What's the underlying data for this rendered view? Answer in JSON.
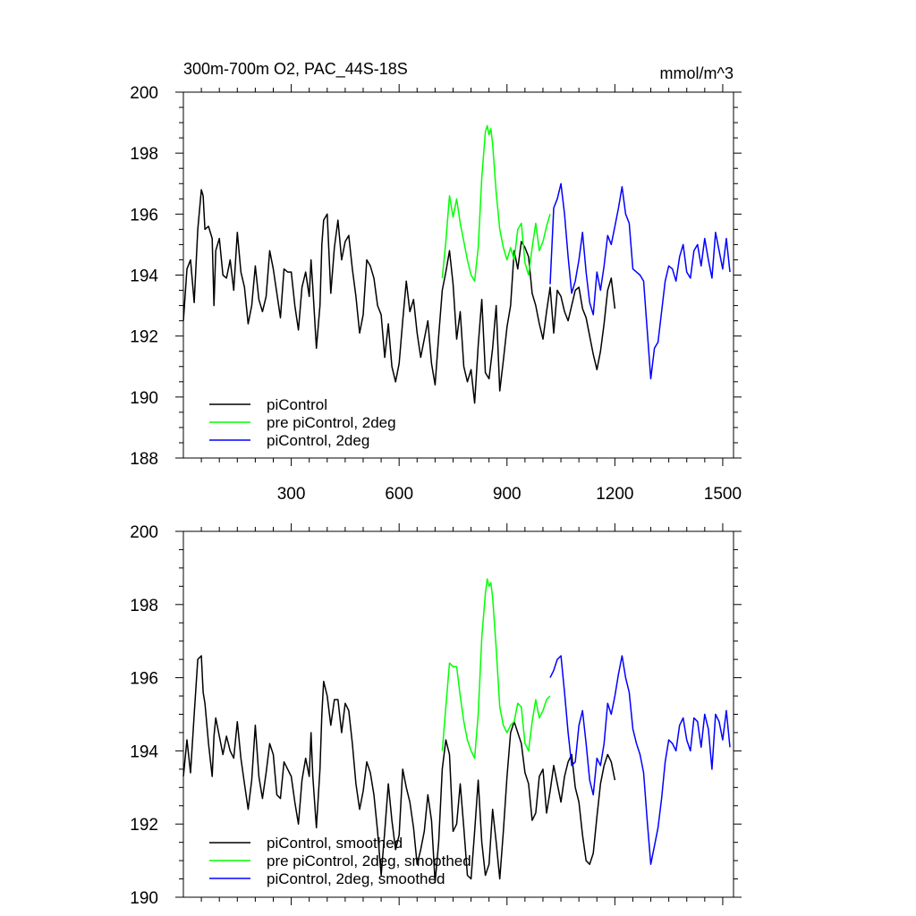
{
  "chart_data": [
    {
      "type": "line",
      "title": "300m-700m O2, PAC_44S-18S",
      "units_label": "mmol/m^3",
      "xlim": [
        0,
        1530
      ],
      "ylim": [
        188,
        200
      ],
      "x_ticks": [
        300,
        600,
        900,
        1200,
        1500
      ],
      "x_tick_labels": [
        "300",
        "600",
        "900",
        "1200",
        "1500"
      ],
      "y_ticks": [
        188,
        190,
        192,
        194,
        196,
        198,
        200
      ],
      "y_tick_labels": [
        "188",
        "190",
        "192",
        "194",
        "196",
        "198",
        "200"
      ],
      "legend_position": "bottom-left",
      "series": [
        {
          "name": "piControl",
          "color": "#000000",
          "x": [
            0,
            10,
            20,
            30,
            40,
            50,
            55,
            60,
            70,
            80,
            85,
            90,
            100,
            110,
            120,
            130,
            140,
            150,
            160,
            170,
            180,
            190,
            200,
            210,
            220,
            230,
            240,
            250,
            260,
            270,
            280,
            290,
            300,
            310,
            320,
            330,
            340,
            350,
            355,
            360,
            370,
            380,
            385,
            390,
            400,
            410,
            420,
            430,
            440,
            450,
            460,
            470,
            480,
            490,
            500,
            510,
            520,
            530,
            540,
            550,
            560,
            570,
            580,
            590,
            600,
            610,
            620,
            630,
            640,
            650,
            660,
            670,
            680,
            690,
            700,
            710,
            720,
            730,
            740,
            750,
            760,
            770,
            780,
            790,
            800,
            810,
            820,
            830,
            840,
            850,
            860,
            870,
            880,
            890,
            900,
            910,
            920,
            930,
            940,
            950,
            960,
            970,
            980,
            990,
            1000,
            1010,
            1020,
            1030,
            1040,
            1050,
            1060,
            1070,
            1080,
            1090,
            1100,
            1110,
            1120,
            1130,
            1140,
            1150,
            1160,
            1170,
            1180,
            1190,
            1200
          ],
          "y": [
            192.5,
            194.2,
            194.5,
            193.1,
            195.5,
            196.8,
            196.6,
            195.5,
            195.6,
            195.2,
            193.0,
            194.8,
            195.2,
            194.0,
            193.9,
            194.5,
            193.5,
            195.4,
            194.1,
            193.6,
            192.4,
            193.0,
            194.3,
            193.2,
            192.8,
            193.3,
            194.8,
            194.2,
            193.4,
            192.6,
            194.2,
            194.1,
            194.1,
            193.0,
            192.2,
            193.6,
            194.1,
            193.3,
            194.5,
            193.6,
            191.6,
            193.0,
            195.0,
            195.8,
            196.0,
            193.4,
            194.9,
            195.8,
            194.5,
            195.1,
            195.3,
            194.2,
            193.3,
            192.1,
            192.7,
            194.5,
            194.3,
            193.9,
            193.0,
            192.7,
            191.3,
            192.4,
            191.0,
            190.5,
            191.1,
            192.5,
            193.8,
            192.8,
            193.2,
            192.1,
            191.3,
            191.9,
            192.5,
            191.1,
            190.4,
            192.0,
            193.5,
            194.1,
            194.8,
            193.7,
            191.9,
            192.8,
            191.0,
            190.5,
            190.9,
            189.8,
            191.7,
            193.2,
            190.8,
            190.6,
            191.6,
            193.0,
            190.2,
            191.2,
            192.3,
            193.0,
            194.8,
            194.2,
            195.1,
            194.9,
            194.6,
            193.4,
            193.0,
            192.4,
            191.9,
            192.8,
            193.6,
            192.1,
            193.5,
            193.3,
            192.8,
            192.5,
            193.0,
            193.5,
            193.6,
            192.9,
            192.6,
            192.0,
            191.4,
            190.9,
            191.5,
            192.4,
            193.5,
            193.9,
            192.9
          ]
        },
        {
          "name": "pre piControl, 2deg",
          "color": "#00ff00",
          "x": [
            720,
            730,
            740,
            750,
            760,
            770,
            780,
            790,
            800,
            810,
            820,
            830,
            840,
            845,
            850,
            855,
            860,
            870,
            880,
            890,
            900,
            910,
            920,
            930,
            940,
            950,
            960,
            970,
            980,
            990,
            1000,
            1010,
            1020
          ],
          "y": [
            193.9,
            195.1,
            196.6,
            195.9,
            196.5,
            195.7,
            195.1,
            194.5,
            194.0,
            193.8,
            194.9,
            197.2,
            198.7,
            198.9,
            198.6,
            198.8,
            198.3,
            196.7,
            195.5,
            194.9,
            194.5,
            194.9,
            194.5,
            195.5,
            195.7,
            194.4,
            194.0,
            194.9,
            195.7,
            194.8,
            195.1,
            195.6,
            196.0
          ]
        },
        {
          "name": "piControl, 2deg",
          "color": "#0000ff",
          "x": [
            1020,
            1030,
            1040,
            1050,
            1060,
            1070,
            1080,
            1090,
            1100,
            1110,
            1120,
            1130,
            1140,
            1150,
            1160,
            1170,
            1180,
            1190,
            1200,
            1210,
            1220,
            1230,
            1240,
            1250,
            1260,
            1270,
            1280,
            1290,
            1300,
            1310,
            1320,
            1330,
            1340,
            1350,
            1360,
            1370,
            1380,
            1390,
            1400,
            1410,
            1420,
            1430,
            1440,
            1450,
            1460,
            1470,
            1480,
            1490,
            1500,
            1510,
            1520
          ],
          "y": [
            193.7,
            196.2,
            196.5,
            197.0,
            196.0,
            194.6,
            193.4,
            193.8,
            194.5,
            195.4,
            194.1,
            193.1,
            192.7,
            194.1,
            193.5,
            194.3,
            195.3,
            195.0,
            195.6,
            196.2,
            196.9,
            196.0,
            195.7,
            194.2,
            194.1,
            194.0,
            193.8,
            192.2,
            190.6,
            191.6,
            191.8,
            192.8,
            193.8,
            194.3,
            194.2,
            193.8,
            194.6,
            195.0,
            194.1,
            193.9,
            194.8,
            195.0,
            194.3,
            195.2,
            194.5,
            193.9,
            195.4,
            194.8,
            194.2,
            195.2,
            194.1
          ]
        }
      ]
    },
    {
      "type": "line",
      "xlim": [
        0,
        1530
      ],
      "ylim": [
        190,
        200
      ],
      "x_ticks": [
        300,
        600,
        900,
        1200,
        1500
      ],
      "y_ticks": [
        190,
        192,
        194,
        196,
        198,
        200
      ],
      "y_tick_labels": [
        "190",
        "192",
        "194",
        "196",
        "198",
        "200"
      ],
      "legend_position": "bottom-left",
      "series": [
        {
          "name": "piControl, smoothed",
          "color": "#000000",
          "x": [
            0,
            10,
            20,
            30,
            40,
            50,
            55,
            60,
            70,
            80,
            85,
            90,
            100,
            110,
            120,
            130,
            140,
            150,
            160,
            170,
            180,
            190,
            200,
            210,
            220,
            230,
            240,
            250,
            260,
            270,
            280,
            290,
            300,
            310,
            320,
            330,
            340,
            350,
            355,
            360,
            370,
            380,
            385,
            390,
            400,
            410,
            420,
            430,
            440,
            450,
            460,
            470,
            480,
            490,
            500,
            510,
            520,
            530,
            540,
            550,
            560,
            570,
            580,
            590,
            600,
            610,
            620,
            630,
            640,
            650,
            660,
            670,
            680,
            690,
            700,
            710,
            720,
            730,
            740,
            750,
            760,
            770,
            780,
            790,
            800,
            810,
            820,
            830,
            840,
            850,
            860,
            870,
            880,
            890,
            900,
            910,
            920,
            930,
            940,
            950,
            960,
            970,
            980,
            990,
            1000,
            1010,
            1020,
            1030,
            1040,
            1050,
            1060,
            1070,
            1080,
            1090,
            1100,
            1110,
            1120,
            1130,
            1140,
            1150,
            1160,
            1170,
            1180,
            1190,
            1200
          ],
          "y": [
            193.3,
            194.3,
            193.4,
            195.0,
            196.5,
            196.6,
            195.6,
            195.3,
            194.2,
            193.3,
            194.4,
            194.9,
            194.4,
            193.9,
            194.4,
            194.0,
            193.8,
            194.8,
            193.8,
            193.1,
            192.4,
            193.2,
            194.7,
            193.3,
            192.7,
            193.4,
            194.2,
            193.9,
            192.8,
            192.7,
            193.7,
            193.5,
            193.3,
            192.6,
            192.0,
            193.2,
            193.8,
            193.3,
            194.5,
            193.3,
            191.9,
            193.5,
            195.0,
            195.9,
            195.5,
            194.7,
            195.4,
            195.4,
            194.5,
            195.3,
            195.1,
            194.2,
            193.1,
            192.4,
            192.9,
            193.7,
            193.4,
            192.8,
            191.8,
            190.6,
            191.8,
            193.1,
            192.1,
            191.3,
            191.7,
            193.5,
            193.0,
            192.6,
            191.9,
            190.9,
            191.3,
            191.8,
            192.8,
            192.1,
            190.4,
            191.5,
            193.5,
            194.3,
            193.9,
            191.8,
            192.0,
            193.1,
            191.9,
            190.6,
            190.5,
            191.8,
            193.2,
            191.5,
            190.6,
            190.9,
            192.4,
            191.5,
            190.5,
            191.8,
            193.3,
            194.5,
            194.8,
            194.5,
            194.2,
            193.4,
            193.1,
            192.1,
            192.3,
            193.3,
            193.5,
            192.3,
            192.9,
            193.6,
            193.1,
            192.6,
            193.3,
            193.7,
            193.9,
            193.0,
            192.6,
            191.7,
            191.0,
            190.9,
            191.2,
            192.2,
            193.1,
            193.6,
            193.9,
            193.7,
            193.2
          ]
        },
        {
          "name": "pre piControl, 2deg, smoothed",
          "color": "#00ff00",
          "x": [
            720,
            730,
            740,
            750,
            760,
            770,
            780,
            790,
            800,
            810,
            820,
            830,
            840,
            845,
            850,
            855,
            860,
            870,
            880,
            890,
            900,
            910,
            920,
            930,
            940,
            950,
            960,
            970,
            980,
            990,
            1000,
            1010,
            1020
          ],
          "y": [
            194.0,
            195.2,
            196.4,
            196.3,
            196.3,
            195.5,
            194.8,
            194.3,
            194.0,
            193.8,
            195.0,
            197.1,
            198.3,
            198.7,
            198.5,
            198.6,
            198.2,
            196.8,
            195.2,
            194.7,
            194.5,
            194.7,
            194.8,
            195.3,
            195.2,
            194.2,
            194.0,
            194.8,
            195.4,
            194.9,
            195.1,
            195.4,
            195.5
          ]
        },
        {
          "name": "piControl, 2deg, smoothed",
          "color": "#0000ff",
          "x": [
            1020,
            1030,
            1040,
            1050,
            1060,
            1070,
            1080,
            1090,
            1100,
            1110,
            1120,
            1130,
            1140,
            1150,
            1160,
            1170,
            1180,
            1190,
            1200,
            1210,
            1220,
            1230,
            1240,
            1250,
            1260,
            1270,
            1280,
            1290,
            1300,
            1310,
            1320,
            1330,
            1340,
            1350,
            1360,
            1370,
            1380,
            1390,
            1400,
            1410,
            1420,
            1430,
            1440,
            1450,
            1460,
            1470,
            1480,
            1490,
            1500,
            1510,
            1520
          ],
          "y": [
            196.0,
            196.2,
            196.5,
            196.6,
            195.6,
            194.5,
            193.6,
            193.7,
            194.7,
            195.1,
            194.2,
            193.2,
            192.8,
            193.8,
            193.6,
            194.2,
            195.3,
            195.0,
            195.5,
            196.1,
            196.6,
            196.0,
            195.6,
            194.6,
            194.2,
            193.9,
            193.4,
            192.1,
            190.9,
            191.4,
            191.9,
            192.7,
            193.7,
            194.3,
            194.2,
            194.0,
            194.7,
            194.9,
            194.3,
            194.0,
            194.9,
            194.8,
            194.1,
            195.0,
            194.6,
            193.5,
            195.0,
            194.8,
            194.3,
            195.1,
            194.1
          ]
        }
      ]
    }
  ]
}
